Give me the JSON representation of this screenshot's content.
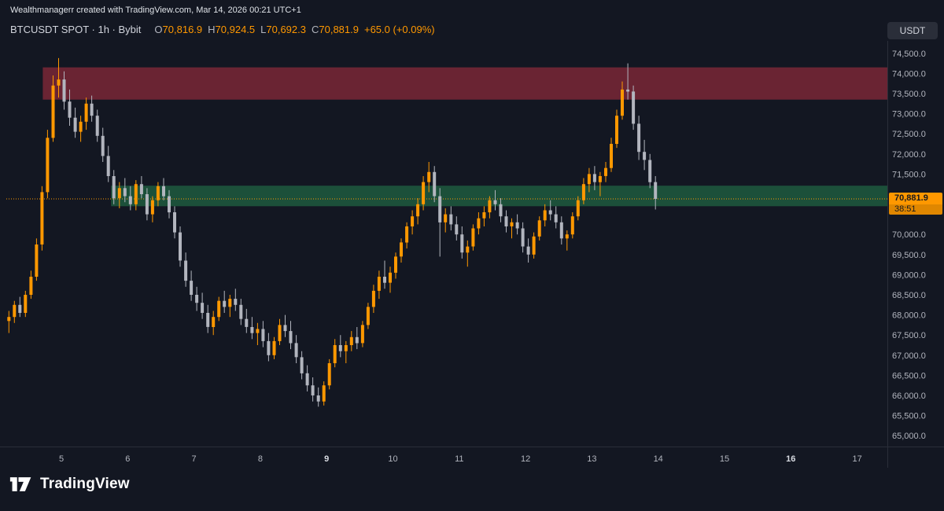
{
  "header": {
    "attribution": "Wealthmanagerr created with TradingView.com, Mar 14, 2026 00:21 UTC+1"
  },
  "toolbar": {
    "currency_button": "USDT"
  },
  "legend": {
    "symbol_text": "BTCUSDT SPOT · 1h · Bybit",
    "o_label": "O",
    "o_value": "70,816.9",
    "h_label": "H",
    "h_value": "70,924.5",
    "l_label": "L",
    "l_value": "70,692.3",
    "c_label": "C",
    "c_value": "70,881.9",
    "change": "+65.0 (+0.09%)"
  },
  "price_label": {
    "value": "70,881.9",
    "countdown": "38:51"
  },
  "footer": {
    "brand": "TradingView"
  },
  "colors": {
    "background": "#131722",
    "up": "#ff9800",
    "down": "#b2b5be",
    "accent": "#ff9800",
    "axis_text": "#b2b5be",
    "axis_text_bold": "#d8dbe2",
    "axis_border": "#2a2e39",
    "supply_zone": "#8c2a3a",
    "demand_zone": "#1e5b3e"
  },
  "chart_data": {
    "type": "candlestick",
    "title": "BTCUSDT SPOT 1h Bybit",
    "symbol": "BTCUSDT",
    "market": "SPOT",
    "timeframe": "1h",
    "exchange": "Bybit",
    "last_price": 70881.9,
    "countdown": "38:51",
    "y_axis": {
      "min": 65000,
      "max": 74500,
      "step": 500,
      "hidden_ticks": [
        71000,
        70500
      ]
    },
    "x_axis": {
      "labels": [
        "5",
        "6",
        "7",
        "8",
        "9",
        "10",
        "11",
        "12",
        "13",
        "14",
        "15",
        "16",
        "17"
      ],
      "bold_labels": [
        "9",
        "16"
      ]
    },
    "zones": [
      {
        "name": "supply-zone",
        "from_day": 4.72,
        "price_top": 74150,
        "price_bottom": 73350,
        "color": "#8c2a3a",
        "opacity": 0.72
      },
      {
        "name": "demand-zone",
        "from_day": 5.75,
        "price_top": 71210,
        "price_bottom": 70700,
        "color": "#1e5b3e",
        "opacity": 0.85
      }
    ],
    "first_candle_day": 4.2083,
    "candle_interval_hours": 2,
    "candles": [
      [
        67850,
        68100,
        67550,
        67950
      ],
      [
        67950,
        68350,
        67800,
        68250
      ],
      [
        68250,
        68450,
        67950,
        68050
      ],
      [
        68050,
        68600,
        67950,
        68500
      ],
      [
        68500,
        69100,
        68400,
        68950
      ],
      [
        68950,
        69900,
        68850,
        69750
      ],
      [
        69750,
        71200,
        69600,
        71050
      ],
      [
        71050,
        72600,
        70900,
        72400
      ],
      [
        72400,
        73950,
        72300,
        73700
      ],
      [
        73700,
        74380,
        73400,
        73850
      ],
      [
        73850,
        74050,
        73100,
        73300
      ],
      [
        73300,
        73600,
        72700,
        72900
      ],
      [
        72900,
        73150,
        72400,
        72550
      ],
      [
        72550,
        72950,
        72300,
        72800
      ],
      [
        72800,
        73400,
        72600,
        73250
      ],
      [
        73250,
        73450,
        72800,
        72950
      ],
      [
        72950,
        73100,
        72300,
        72450
      ],
      [
        72450,
        72650,
        71800,
        71950
      ],
      [
        71950,
        72200,
        71300,
        71450
      ],
      [
        71450,
        71600,
        70750,
        70900
      ],
      [
        70900,
        71300,
        70650,
        71150
      ],
      [
        71150,
        71400,
        70800,
        70950
      ],
      [
        70950,
        71200,
        70600,
        70750
      ],
      [
        70750,
        71350,
        70600,
        71250
      ],
      [
        71250,
        71450,
        70900,
        71000
      ],
      [
        71000,
        71150,
        70350,
        70500
      ],
      [
        70500,
        70950,
        70300,
        70850
      ],
      [
        70850,
        71300,
        70700,
        71200
      ],
      [
        71200,
        71400,
        70850,
        70950
      ],
      [
        70950,
        71100,
        70400,
        70550
      ],
      [
        70550,
        70700,
        69900,
        70050
      ],
      [
        70050,
        70200,
        69200,
        69350
      ],
      [
        69350,
        69550,
        68700,
        68850
      ],
      [
        68850,
        69100,
        68350,
        68500
      ],
      [
        68500,
        68700,
        68100,
        68300
      ],
      [
        68300,
        68550,
        67900,
        68050
      ],
      [
        68050,
        68250,
        67550,
        67700
      ],
      [
        67700,
        68100,
        67500,
        67950
      ],
      [
        67950,
        68450,
        67850,
        68350
      ],
      [
        68350,
        68600,
        68050,
        68200
      ],
      [
        68200,
        68500,
        67950,
        68400
      ],
      [
        68400,
        68650,
        68100,
        68250
      ],
      [
        68250,
        68400,
        67750,
        67900
      ],
      [
        67900,
        68150,
        67550,
        67700
      ],
      [
        67700,
        67950,
        67400,
        67550
      ],
      [
        67550,
        67800,
        67250,
        67650
      ],
      [
        67650,
        67850,
        67200,
        67350
      ],
      [
        67350,
        67550,
        66850,
        67000
      ],
      [
        67000,
        67450,
        66900,
        67350
      ],
      [
        67350,
        67900,
        67250,
        67750
      ],
      [
        67750,
        68000,
        67450,
        67600
      ],
      [
        67600,
        67850,
        67150,
        67300
      ],
      [
        67300,
        67500,
        66800,
        66950
      ],
      [
        66950,
        67100,
        66400,
        66550
      ],
      [
        66550,
        66750,
        66100,
        66250
      ],
      [
        66250,
        66450,
        65850,
        66000
      ],
      [
        66000,
        66200,
        65720,
        65850
      ],
      [
        65850,
        66350,
        65750,
        66250
      ],
      [
        66250,
        66900,
        66150,
        66800
      ],
      [
        66800,
        67400,
        66700,
        67250
      ],
      [
        67250,
        67500,
        66950,
        67100
      ],
      [
        67100,
        67350,
        66800,
        67250
      ],
      [
        67250,
        67600,
        67100,
        67450
      ],
      [
        67450,
        67700,
        67150,
        67300
      ],
      [
        67300,
        67850,
        67200,
        67750
      ],
      [
        67750,
        68300,
        67650,
        68200
      ],
      [
        68200,
        68750,
        68050,
        68600
      ],
      [
        68600,
        69100,
        68400,
        68950
      ],
      [
        68950,
        69350,
        68650,
        68800
      ],
      [
        68800,
        69200,
        68550,
        69050
      ],
      [
        69050,
        69550,
        68900,
        69450
      ],
      [
        69450,
        69900,
        69300,
        69800
      ],
      [
        69800,
        70300,
        69650,
        70200
      ],
      [
        70200,
        70600,
        70000,
        70450
      ],
      [
        70450,
        70900,
        70250,
        70750
      ],
      [
        70750,
        71450,
        70600,
        71300
      ],
      [
        71300,
        71800,
        71050,
        71550
      ],
      [
        71550,
        71700,
        70800,
        70950
      ],
      [
        70950,
        71150,
        69450,
        70300
      ],
      [
        70300,
        70650,
        70050,
        70500
      ],
      [
        70500,
        70700,
        70100,
        70250
      ],
      [
        70250,
        70450,
        69850,
        70000
      ],
      [
        70000,
        70200,
        69400,
        69550
      ],
      [
        69550,
        69850,
        69200,
        69700
      ],
      [
        69700,
        70250,
        69600,
        70150
      ],
      [
        70150,
        70550,
        70000,
        70400
      ],
      [
        70400,
        70700,
        70200,
        70550
      ],
      [
        70550,
        70950,
        70400,
        70850
      ],
      [
        70850,
        71100,
        70600,
        70750
      ],
      [
        70750,
        70900,
        70300,
        70450
      ],
      [
        70450,
        70600,
        70050,
        70200
      ],
      [
        70200,
        70400,
        69900,
        70300
      ],
      [
        70300,
        70500,
        70000,
        70150
      ],
      [
        70150,
        70300,
        69550,
        69700
      ],
      [
        69700,
        69900,
        69300,
        69500
      ],
      [
        69500,
        70050,
        69400,
        69950
      ],
      [
        69950,
        70450,
        69850,
        70350
      ],
      [
        70350,
        70750,
        70200,
        70600
      ],
      [
        70600,
        70850,
        70350,
        70500
      ],
      [
        70500,
        70700,
        70150,
        70300
      ],
      [
        70300,
        70450,
        69750,
        69900
      ],
      [
        69900,
        70100,
        69600,
        70000
      ],
      [
        70000,
        70550,
        69900,
        70450
      ],
      [
        70450,
        70950,
        70350,
        70850
      ],
      [
        70850,
        71400,
        70750,
        71250
      ],
      [
        71250,
        71650,
        71050,
        71500
      ],
      [
        71500,
        71700,
        71100,
        71300
      ],
      [
        71300,
        71550,
        70950,
        71450
      ],
      [
        71450,
        71800,
        71300,
        71650
      ],
      [
        71650,
        72400,
        71550,
        72250
      ],
      [
        72250,
        73100,
        72150,
        72950
      ],
      [
        72950,
        73800,
        72850,
        73600
      ],
      [
        73600,
        74250,
        73350,
        73550
      ],
      [
        73550,
        73700,
        72600,
        72750
      ],
      [
        72750,
        72950,
        71850,
        72050
      ],
      [
        72050,
        72350,
        71600,
        71850
      ],
      [
        71850,
        72000,
        71150,
        71300
      ],
      [
        71300,
        71450,
        70620,
        70881.9
      ]
    ]
  }
}
